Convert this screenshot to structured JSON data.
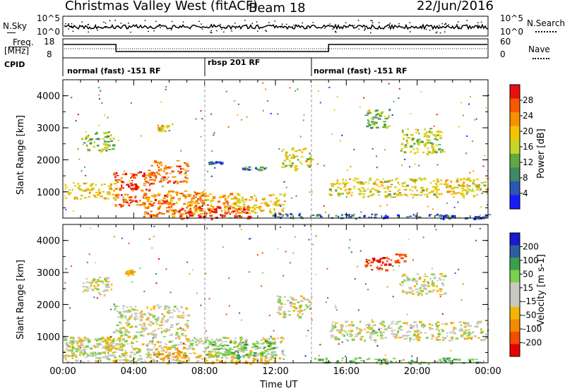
{
  "header": {
    "station": "Christmas Valley West (fitACF)",
    "beam": "Beam 18",
    "date": "22/Jun/2016"
  },
  "top_panel": {
    "nsky_label": "N.Sky",
    "nsky_ticks": [
      "10^5",
      "10^0"
    ],
    "nsearch_label": "N.Search",
    "nsearch_ticks": [
      "10^5",
      "10^0"
    ],
    "freq_label_line1": "Freq.",
    "freq_label_line2": "[MHz]",
    "freq_ticks": [
      "18",
      "8"
    ],
    "nave_label": "Nave",
    "nave_ticks": [
      "60",
      "0"
    ],
    "cpid_label": "CPID",
    "cpid_segments": [
      {
        "label": "normal (fast) -151 RF",
        "start_hour": 0,
        "end_hour": 8
      },
      {
        "label": "rbsp 201 RF",
        "start_hour": 8,
        "end_hour": 14
      },
      {
        "label": "normal (fast) -151 RF",
        "start_hour": 14,
        "end_hour": 24
      }
    ]
  },
  "colors": {
    "power": [
      "#1a1aff",
      "#2d55b4",
      "#3f8a62",
      "#5fa843",
      "#c8d428",
      "#f5c400",
      "#f59200",
      "#f55a00",
      "#e81010"
    ],
    "velocity": [
      "#e80000",
      "#f54d00",
      "#f58a00",
      "#f5b400",
      "#c8c8c0",
      "#c8c8c0",
      "#7ad14a",
      "#3aa04d",
      "#2d5fa0",
      "#1a1ad0"
    ]
  },
  "chart_data": [
    {
      "type": "heatmap",
      "title": "",
      "xlabel": "Time UT",
      "ylabel": "Slant Range [km]",
      "colorbar_label": "Power [dB]",
      "colorbar_ticks": [
        "28",
        "24",
        "20",
        "16",
        "12",
        "8",
        "4"
      ],
      "colorbar_range": [
        0,
        32
      ],
      "xlim_hours": [
        0,
        24
      ],
      "ylim": [
        180,
        4500
      ],
      "x_ticks": [
        "00:00",
        "04:00",
        "08:00",
        "12:00",
        "16:00",
        "20:00",
        "00:00"
      ],
      "y_ticks": [
        1000,
        2000,
        3000,
        4000
      ],
      "regions": [
        {
          "x": [
            0.0,
            2.9
          ],
          "y": [
            800,
            1300
          ],
          "value": 20
        },
        {
          "x": [
            1.0,
            3.0
          ],
          "y": [
            2300,
            2900
          ],
          "value": 14
        },
        {
          "x": [
            2.8,
            5.2
          ],
          "y": [
            1050,
            1650
          ],
          "value": 28
        },
        {
          "x": [
            4.8,
            7.0
          ],
          "y": [
            1300,
            2000
          ],
          "value": 26
        },
        {
          "x": [
            2.9,
            6.2
          ],
          "y": [
            550,
            950
          ],
          "value": 26
        },
        {
          "x": [
            4.5,
            8.0
          ],
          "y": [
            250,
            1050
          ],
          "value": 24
        },
        {
          "x": [
            7.0,
            10.0
          ],
          "y": [
            350,
            1000
          ],
          "value": 22
        },
        {
          "x": [
            6.5,
            10.5
          ],
          "y": [
            180,
            550
          ],
          "value": 30
        },
        {
          "x": [
            9.5,
            12.5
          ],
          "y": [
            350,
            950
          ],
          "value": 20
        },
        {
          "x": [
            8.2,
            9.0
          ],
          "y": [
            1900,
            1960
          ],
          "value": 4
        },
        {
          "x": [
            10.0,
            12.0
          ],
          "y": [
            1700,
            1800
          ],
          "value": 10
        },
        {
          "x": [
            12.3,
            14.0
          ],
          "y": [
            1700,
            2400
          ],
          "value": 18
        },
        {
          "x": [
            11.8,
            13.6
          ],
          "y": [
            180,
            350
          ],
          "value": 8
        },
        {
          "x": [
            14.0,
            24.0
          ],
          "y": [
            180,
            320
          ],
          "value": 6
        },
        {
          "x": [
            15.0,
            24.0
          ],
          "y": [
            850,
            1450
          ],
          "value": 18
        },
        {
          "x": [
            17.0,
            18.5
          ],
          "y": [
            3000,
            3600
          ],
          "value": 12
        },
        {
          "x": [
            19.0,
            21.5
          ],
          "y": [
            2200,
            3000
          ],
          "value": 16
        },
        {
          "x": [
            5.3,
            6.0
          ],
          "y": [
            2900,
            3100
          ],
          "value": 18
        }
      ]
    },
    {
      "type": "heatmap",
      "title": "",
      "xlabel": "Time UT",
      "ylabel": "Slant Range [km]",
      "colorbar_label": "Velocity [m s-1]",
      "colorbar_ticks": [
        "200",
        "100",
        "50",
        "15",
        "-15",
        "-50",
        "-100",
        "-200"
      ],
      "colorbar_range": [
        -250,
        250
      ],
      "xlim_hours": [
        0,
        24
      ],
      "ylim": [
        180,
        4500
      ],
      "x_ticks": [
        "00:00",
        "04:00",
        "08:00",
        "12:00",
        "16:00",
        "20:00",
        "00:00"
      ],
      "y_ticks": [
        1000,
        2000,
        3000,
        4000
      ],
      "regions": [
        {
          "x": [
            1.0,
            2.8
          ],
          "y": [
            2300,
            2900
          ],
          "value": 0
        },
        {
          "x": [
            2.8,
            7.0
          ],
          "y": [
            1000,
            2000
          ],
          "value": 0
        },
        {
          "x": [
            0.0,
            8.0
          ],
          "y": [
            180,
            1000
          ],
          "value": 0
        },
        {
          "x": [
            8.0,
            12.5
          ],
          "y": [
            350,
            1000
          ],
          "value": 0
        },
        {
          "x": [
            5.0,
            7.0
          ],
          "y": [
            300,
            700
          ],
          "value": -60
        },
        {
          "x": [
            7.5,
            12.0
          ],
          "y": [
            180,
            500
          ],
          "value": -30
        },
        {
          "x": [
            8.0,
            12.0
          ],
          "y": [
            350,
            900
          ],
          "value": 40
        },
        {
          "x": [
            12.0,
            14.0
          ],
          "y": [
            1600,
            2300
          ],
          "value": 0
        },
        {
          "x": [
            15.0,
            24.0
          ],
          "y": [
            900,
            1500
          ],
          "value": 0
        },
        {
          "x": [
            14.0,
            24.0
          ],
          "y": [
            180,
            350
          ],
          "value": 40
        },
        {
          "x": [
            19.0,
            21.5
          ],
          "y": [
            2300,
            3000
          ],
          "value": 0
        },
        {
          "x": [
            17.0,
            18.5
          ],
          "y": [
            3100,
            3500
          ],
          "value": -200
        },
        {
          "x": [
            18.5,
            19.3
          ],
          "y": [
            3300,
            3600
          ],
          "value": -150
        },
        {
          "x": [
            3.5,
            4.0
          ],
          "y": [
            2950,
            3100
          ],
          "value": -60
        },
        {
          "x": [
            0.0,
            3.0
          ],
          "y": [
            400,
            1000
          ],
          "value": 0
        }
      ]
    }
  ]
}
